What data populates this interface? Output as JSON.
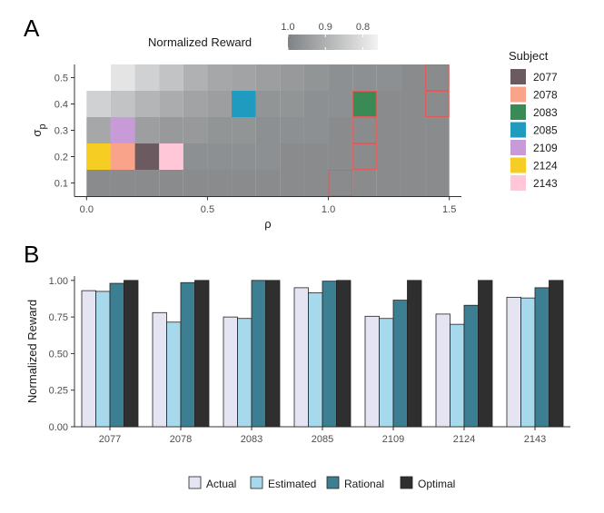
{
  "panel_a_label": "A",
  "panel_b_label": "B",
  "chart_data": [
    {
      "type": "heatmap",
      "panel": "A",
      "xlabel": "ρ",
      "ylabel": "σ",
      "ylabel_subscript": "p",
      "x_ticks": [
        "0.0",
        "0.5",
        "1.0",
        "1.5"
      ],
      "x_tick_values": [
        0.0,
        0.5,
        1.0,
        1.5
      ],
      "y_ticks": [
        "0.1",
        "0.2",
        "0.3",
        "0.4",
        "0.5"
      ],
      "y_tick_values": [
        0.1,
        0.2,
        0.3,
        0.4,
        0.5
      ],
      "xlim": [
        -0.05,
        1.55
      ],
      "ylim": [
        0.05,
        0.55
      ],
      "x_values": [
        0.05,
        0.15,
        0.25,
        0.35,
        0.45,
        0.55,
        0.65,
        0.75,
        0.85,
        0.95,
        1.05,
        1.15,
        1.25,
        1.35,
        1.45
      ],
      "y_values": [
        0.1,
        0.2,
        0.3,
        0.4,
        0.5
      ],
      "reward_grid": [
        [
          0.78,
          0.78,
          0.78,
          0.78,
          0.78,
          0.78,
          0.78,
          0.78,
          0.78,
          0.78,
          0.78,
          0.78,
          0.78,
          0.78,
          0.78
        ],
        [
          0.8,
          0.8,
          0.8,
          0.8,
          0.79,
          0.79,
          0.79,
          0.79,
          0.78,
          0.78,
          0.78,
          0.78,
          0.78,
          0.78,
          0.78
        ],
        [
          0.84,
          0.83,
          0.82,
          0.81,
          0.81,
          0.8,
          0.8,
          0.79,
          0.79,
          0.79,
          0.78,
          0.78,
          0.78,
          0.78,
          0.78
        ],
        [
          0.93,
          0.9,
          0.87,
          0.85,
          0.83,
          0.82,
          0.81,
          0.8,
          0.8,
          0.79,
          0.79,
          0.79,
          0.78,
          0.78,
          0.78
        ],
        [
          null,
          0.97,
          0.93,
          0.9,
          0.86,
          0.84,
          0.83,
          0.82,
          0.81,
          0.8,
          0.79,
          0.79,
          0.79,
          0.78,
          0.78
        ]
      ],
      "colorbar": {
        "title": "Normalized Reward",
        "ticks": [
          "1.0",
          "0.9",
          "0.8"
        ],
        "tick_values": [
          1.0,
          0.9,
          0.8
        ],
        "range": [
          1.0,
          0.76
        ]
      },
      "legend_title": "Subject",
      "subjects": [
        {
          "id": "2077",
          "color": "#6b5a5f",
          "x": 0.25,
          "y": 0.2
        },
        {
          "id": "2078",
          "color": "#f9a48a",
          "x": 0.15,
          "y": 0.2
        },
        {
          "id": "2083",
          "color": "#3a8a55",
          "x": 1.15,
          "y": 0.4
        },
        {
          "id": "2085",
          "color": "#1f9bbf",
          "x": 0.65,
          "y": 0.4
        },
        {
          "id": "2109",
          "color": "#c79ad8",
          "x": 0.15,
          "y": 0.3
        },
        {
          "id": "2124",
          "color": "#f6cd22",
          "x": 0.05,
          "y": 0.2
        },
        {
          "id": "2143",
          "color": "#ffc7d8",
          "x": 0.35,
          "y": 0.2
        }
      ],
      "optimal_cells": [
        {
          "x": 1.05,
          "y": 0.1
        },
        {
          "x": 1.15,
          "y": 0.2
        },
        {
          "x": 1.15,
          "y": 0.3
        },
        {
          "x": 1.15,
          "y": 0.4
        },
        {
          "x": 1.45,
          "y": 0.4
        },
        {
          "x": 1.45,
          "y": 0.5
        }
      ],
      "optimal_outline_color": "#e05a5a"
    },
    {
      "type": "bar",
      "panel": "B",
      "ylabel": "Normalized Reward",
      "xlabel": "",
      "ylim": [
        0,
        1.03
      ],
      "y_ticks": [
        "0.00",
        "0.25",
        "0.50",
        "0.75",
        "1.00"
      ],
      "y_tick_values": [
        0,
        0.25,
        0.5,
        0.75,
        1.0
      ],
      "categories": [
        "2077",
        "2078",
        "2083",
        "2085",
        "2109",
        "2124",
        "2143"
      ],
      "series": [
        {
          "name": "Actual",
          "color": "#e4e4f2",
          "values": [
            0.93,
            0.78,
            0.75,
            0.95,
            0.755,
            0.77,
            0.885
          ]
        },
        {
          "name": "Estimated",
          "color": "#a7d9ec",
          "values": [
            0.925,
            0.715,
            0.74,
            0.915,
            0.74,
            0.7,
            0.88
          ]
        },
        {
          "name": "Rational",
          "color": "#3c7f92",
          "values": [
            0.98,
            0.985,
            1.0,
            0.995,
            0.865,
            0.83,
            0.95
          ]
        },
        {
          "name": "Optimal",
          "color": "#2f2f2f",
          "values": [
            1.0,
            1.0,
            1.0,
            1.0,
            1.0,
            1.0,
            1.0
          ]
        }
      ]
    }
  ]
}
